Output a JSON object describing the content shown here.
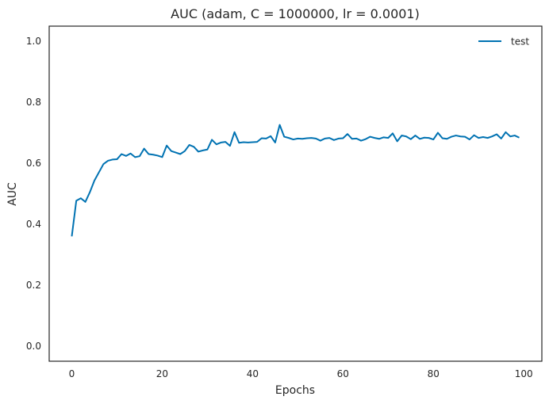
{
  "chart_data": {
    "type": "line",
    "title": "AUC (adam, C = 1000000, lr = 0.0001)",
    "xlabel": "Epochs",
    "ylabel": "AUC",
    "xlim": [
      -5,
      104
    ],
    "ylim": [
      -0.05,
      1.05
    ],
    "xticks": [
      0,
      20,
      40,
      60,
      80,
      100
    ],
    "yticks": [
      0.0,
      0.2,
      0.4,
      0.6,
      0.8,
      1.0
    ],
    "xtick_labels": [
      "0",
      "20",
      "40",
      "60",
      "80",
      "100"
    ],
    "ytick_labels": [
      "0.0",
      "0.2",
      "0.4",
      "0.6",
      "0.8",
      "1.0"
    ],
    "grid": false,
    "legend_position": "top-right",
    "series": [
      {
        "name": "test",
        "color": "#0072B2",
        "x": [
          0,
          1,
          2,
          3,
          4,
          5,
          6,
          7,
          8,
          9,
          10,
          11,
          12,
          13,
          14,
          15,
          16,
          17,
          18,
          19,
          20,
          21,
          22,
          23,
          24,
          25,
          26,
          27,
          28,
          29,
          30,
          31,
          32,
          33,
          34,
          35,
          36,
          37,
          38,
          39,
          40,
          41,
          42,
          43,
          44,
          45,
          46,
          47,
          48,
          49,
          50,
          51,
          52,
          53,
          54,
          55,
          56,
          57,
          58,
          59,
          60,
          61,
          62,
          63,
          64,
          65,
          66,
          67,
          68,
          69,
          70,
          71,
          72,
          73,
          74,
          75,
          76,
          77,
          78,
          79,
          80,
          81,
          82,
          83,
          84,
          85,
          86,
          87,
          88,
          89,
          90,
          91,
          92,
          93,
          94,
          95,
          96,
          97,
          98,
          99
        ],
        "values": [
          0.36,
          0.477,
          0.485,
          0.473,
          0.505,
          0.543,
          0.57,
          0.597,
          0.608,
          0.612,
          0.613,
          0.63,
          0.624,
          0.632,
          0.62,
          0.623,
          0.648,
          0.63,
          0.628,
          0.625,
          0.62,
          0.658,
          0.64,
          0.635,
          0.63,
          0.64,
          0.66,
          0.654,
          0.638,
          0.642,
          0.645,
          0.677,
          0.662,
          0.668,
          0.67,
          0.657,
          0.702,
          0.667,
          0.669,
          0.668,
          0.669,
          0.67,
          0.682,
          0.681,
          0.689,
          0.668,
          0.726,
          0.687,
          0.683,
          0.678,
          0.681,
          0.68,
          0.682,
          0.683,
          0.681,
          0.674,
          0.681,
          0.683,
          0.676,
          0.681,
          0.682,
          0.696,
          0.68,
          0.681,
          0.674,
          0.679,
          0.687,
          0.683,
          0.68,
          0.685,
          0.683,
          0.698,
          0.672,
          0.691,
          0.688,
          0.679,
          0.691,
          0.68,
          0.684,
          0.683,
          0.678,
          0.7,
          0.682,
          0.68,
          0.687,
          0.691,
          0.688,
          0.687,
          0.678,
          0.692,
          0.683,
          0.686,
          0.683,
          0.688,
          0.695,
          0.681,
          0.702,
          0.688,
          0.691,
          0.684
        ]
      }
    ]
  }
}
